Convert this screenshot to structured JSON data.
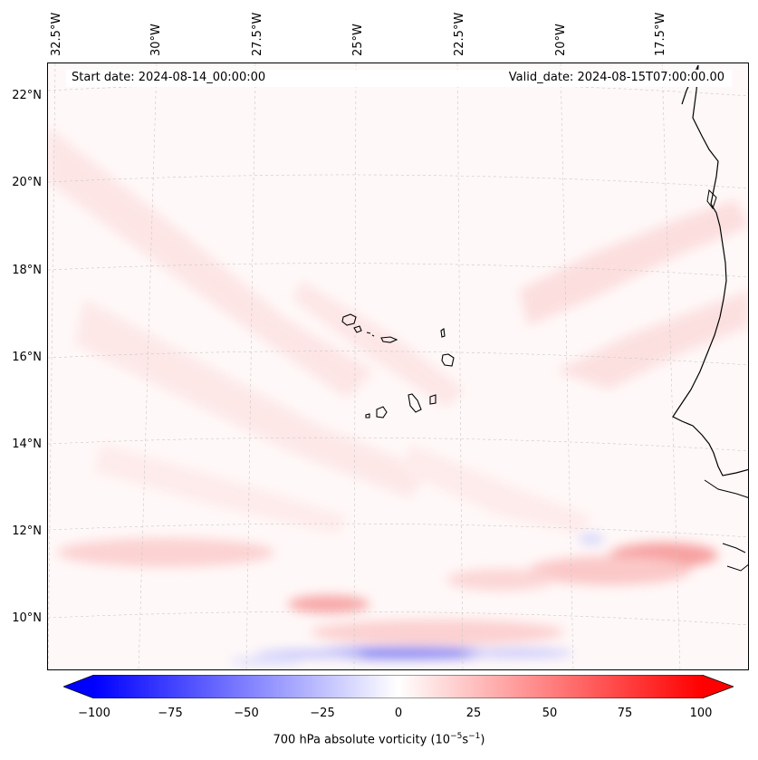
{
  "header": {
    "start_date": "Start date: 2024-08-14_00:00:00",
    "valid_date": "Valid_date: 2024-08-15T07:00:00.00"
  },
  "axes": {
    "longitude_labels": [
      "32.5°W",
      "30°W",
      "27.5°W",
      "25°W",
      "22.5°W",
      "20°W",
      "17.5°W"
    ],
    "latitude_labels": [
      "22°N",
      "20°N",
      "18°N",
      "16°N",
      "14°N",
      "12°N",
      "10°N"
    ]
  },
  "colorbar": {
    "label_prefix": "700 hPa absolute vorticity (10",
    "label_exp1": "−5",
    "label_mid": "s",
    "label_exp2": "−1",
    "label_suffix": ")",
    "ticks": [
      "−100",
      "−75",
      "−50",
      "−25",
      "0",
      "25",
      "50",
      "75",
      "100"
    ],
    "min": -100,
    "max": 100,
    "colors": {
      "negative": "#0000ff",
      "neutral": "#ffffff",
      "positive": "#ff0000"
    }
  }
}
